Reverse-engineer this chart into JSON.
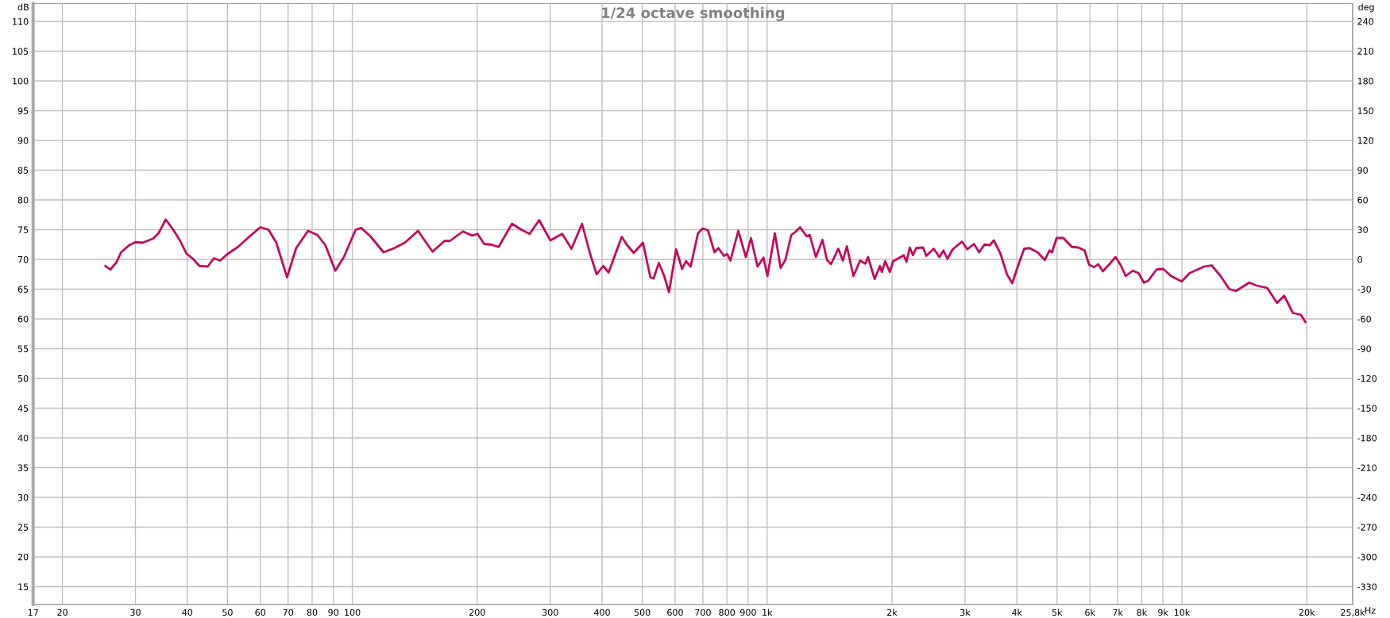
{
  "chart_data": {
    "type": "line",
    "title": "1/24 octave smoothing",
    "xlabel": "Hz",
    "ylabel": "dB",
    "y2label": "deg",
    "log": "x",
    "grid": true,
    "marker": "none",
    "line_style": "solid",
    "xlim": [
      17,
      25800
    ],
    "xticks": [
      17,
      20,
      30,
      40,
      50,
      60,
      70,
      80,
      90,
      100,
      200,
      300,
      400,
      500,
      600,
      700,
      800,
      900,
      {
        "value": 1000,
        "label": "1k"
      },
      {
        "value": 2000,
        "label": "2k"
      },
      {
        "value": 3000,
        "label": "3k"
      },
      {
        "value": 4000,
        "label": "4k"
      },
      {
        "value": 5000,
        "label": "5k"
      },
      {
        "value": 6000,
        "label": "6k"
      },
      {
        "value": 7000,
        "label": "7k"
      },
      {
        "value": 8000,
        "label": "8k"
      },
      {
        "value": 9000,
        "label": "9k"
      },
      {
        "value": 10000,
        "label": "10k"
      },
      {
        "value": 20000,
        "label": "20k"
      },
      {
        "value": 25800,
        "label": "25,8k"
      }
    ],
    "ylim": [
      12,
      113
    ],
    "yticks": [
      15,
      20,
      25,
      30,
      35,
      40,
      45,
      50,
      55,
      60,
      65,
      70,
      75,
      80,
      85,
      90,
      95,
      100,
      105,
      110
    ],
    "y2lim": [
      -348,
      258
    ],
    "y2ticks": [
      -330,
      -300,
      -270,
      -240,
      -210,
      -180,
      -150,
      -120,
      -90,
      -60,
      -30,
      0,
      30,
      60,
      90,
      120,
      150,
      180,
      210,
      240
    ],
    "series": [
      {
        "color": "#c4075f",
        "x": [
          25.4,
          26.1,
          27.0,
          27.7,
          29.0,
          30.0,
          31.2,
          33.1,
          34.1,
          35.5,
          37.0,
          38.4,
          39.8,
          41.3,
          42.8,
          44.8,
          46.4,
          48.0,
          50.0,
          53.0,
          56.2,
          60.0,
          62.8,
          65.6,
          69.6,
          73.2,
          78.2,
          82.4,
          86.1,
          91.0,
          95.4,
          101.9,
          105.0,
          110.5,
          118.9,
          126.2,
          133.8,
          144.0,
          156.1,
          166.8,
          171.8,
          184.8,
          194.6,
          200.4,
          207.9,
          215.6,
          225.3,
          242.6,
          255.4,
          267.6,
          282.1,
          300.2,
          320.6,
          337.6,
          357.9,
          374.1,
          388.2,
          402.7,
          414.8,
          446.2,
          459.7,
          476.9,
          502.0,
          523.1,
          532.4,
          548.3,
          564.8,
          580.0,
          603.5,
          623.8,
          637.1,
          654.1,
          681.4,
          699.1,
          720.0,
          746.6,
          763.1,
          786.3,
          801.3,
          815.6,
          852.1,
          888.7,
          914.3,
          948.4,
          979.9,
          1001.8,
          1043.7,
          1077.7,
          1106.6,
          1143.5,
          1168.9,
          1200.4,
          1245.0,
          1267.0,
          1311.0,
          1359.6,
          1394.4,
          1425.3,
          1484.9,
          1522.7,
          1556.7,
          1615.0,
          1674.9,
          1725.2,
          1750.8,
          1816.5,
          1870.4,
          1890.3,
          1926.3,
          1975.3,
          2012.9,
          2135,
          2167,
          2208,
          2247,
          2287,
          2377,
          2419,
          2520,
          2603,
          2661,
          2720,
          2802,
          2950,
          3038,
          3152,
          3245,
          3342,
          3443,
          3519,
          3651,
          3786,
          3899,
          4016,
          4166,
          4292,
          4485,
          4672,
          4792,
          4862,
          4987,
          5179,
          5428,
          5630,
          5825,
          5974,
          6149,
          6287,
          6446,
          6686,
          6917,
          7124,
          7315,
          7611,
          7860,
          8096,
          8287,
          8687,
          9013,
          9419,
          9986,
          10437,
          11320,
          11793,
          12365,
          13013,
          13504,
          14533,
          15148,
          16057,
          16956,
          17640,
          18517,
          19349,
          19841
        ],
        "values": [
          68.9,
          68.3,
          69.5,
          71.2,
          72.4,
          72.9,
          72.8,
          73.5,
          74.4,
          76.7,
          75.0,
          73.2,
          71.0,
          70.1,
          68.9,
          68.8,
          70.2,
          69.8,
          70.9,
          72.1,
          73.7,
          75.4,
          75.0,
          72.8,
          67.0,
          71.9,
          74.8,
          74.1,
          72.4,
          68.1,
          70.4,
          75.0,
          75.3,
          73.9,
          71.2,
          71.9,
          72.8,
          74.8,
          71.3,
          73.1,
          73.1,
          74.7,
          74.0,
          74.3,
          72.6,
          72.5,
          72.1,
          76.0,
          75.0,
          74.3,
          76.6,
          73.2,
          74.3,
          71.8,
          76.0,
          71.0,
          67.5,
          68.9,
          67.8,
          73.8,
          72.4,
          71.1,
          72.8,
          67.0,
          66.8,
          69.4,
          67.2,
          64.5,
          71.7,
          68.4,
          69.7,
          68.8,
          74.4,
          75.2,
          74.9,
          71.2,
          71.9,
          70.6,
          70.9,
          69.8,
          74.8,
          70.4,
          73.6,
          68.8,
          70.3,
          67.2,
          74.4,
          68.6,
          69.9,
          74.1,
          74.6,
          75.4,
          73.9,
          74.1,
          70.4,
          73.3,
          69.9,
          69.2,
          71.8,
          69.8,
          72.2,
          67.2,
          69.8,
          69.3,
          70.4,
          66.7,
          68.9,
          67.9,
          69.7,
          67.9,
          69.7,
          70.7,
          69.6,
          72.0,
          70.7,
          71.9,
          72.0,
          70.6,
          71.8,
          70.4,
          71.5,
          70.1,
          71.7,
          73.0,
          71.7,
          72.6,
          71.2,
          72.5,
          72.4,
          73.2,
          71.0,
          67.5,
          66.0,
          68.7,
          71.8,
          71.9,
          71.2,
          69.9,
          71.5,
          71.2,
          73.6,
          73.6,
          72.1,
          72.0,
          71.5,
          69.1,
          68.7,
          69.2,
          68.0,
          69.2,
          70.4,
          69.0,
          67.2,
          68.1,
          67.7,
          66.1,
          66.4,
          68.3,
          68.4,
          67.2,
          66.3,
          67.7,
          68.8,
          69.0,
          67.3,
          65.0,
          64.7,
          66.1,
          65.6,
          65.2,
          62.7,
          63.9,
          61.0,
          60.7,
          59.5
        ]
      }
    ]
  }
}
